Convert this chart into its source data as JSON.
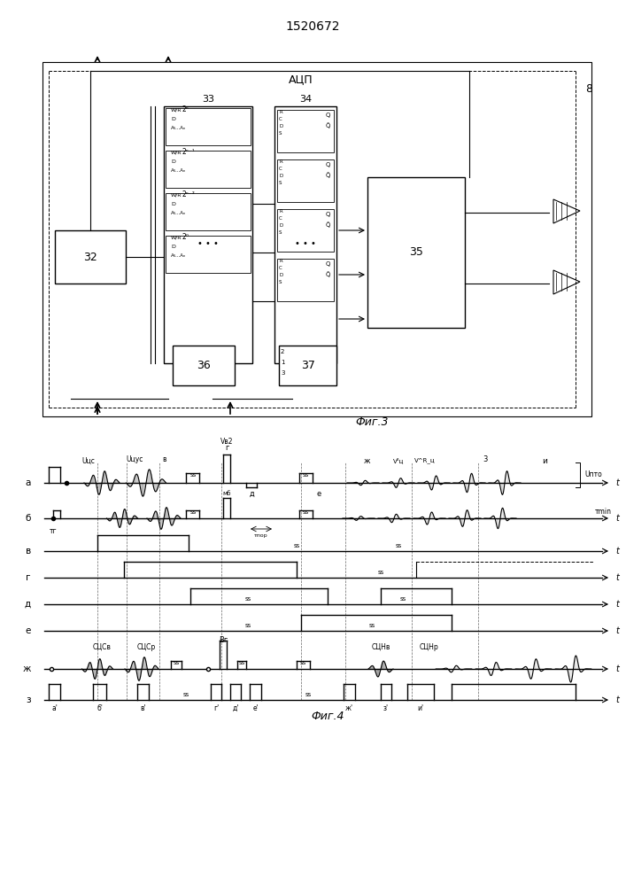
{
  "title": "1520672",
  "fig3_label": "Фиг.3",
  "fig4_label": "Фиг.4",
  "acp_label": "АЦП",
  "block32_label": "32",
  "block33_label": "33",
  "block34_label": "34",
  "block35_label": "35",
  "block36_label": "36",
  "block37_label": "37",
  "block8_label": "8",
  "row_labels_a": [
    "а",
    "б",
    "в",
    "г",
    "д",
    "е",
    "ж",
    "з"
  ],
  "signal_labels": [
    "Uцс",
    "Uцус",
    "в"
  ],
  "bg_color": "#ffffff",
  "line_color": "#000000",
  "font_size_title": 10,
  "font_size_label": 7,
  "font_size_block": 8
}
